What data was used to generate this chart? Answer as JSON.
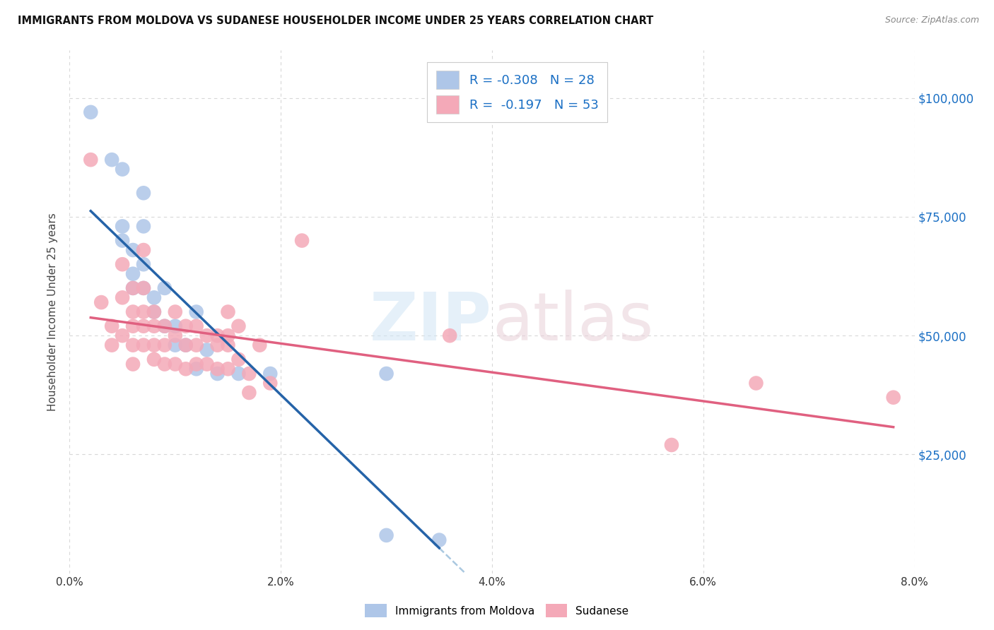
{
  "title": "IMMIGRANTS FROM MOLDOVA VS SUDANESE HOUSEHOLDER INCOME UNDER 25 YEARS CORRELATION CHART",
  "source": "Source: ZipAtlas.com",
  "ylabel": "Householder Income Under 25 years",
  "xlim": [
    0.0,
    0.08
  ],
  "ylim": [
    0,
    110000
  ],
  "xtick_labels": [
    "0.0%",
    "2.0%",
    "4.0%",
    "6.0%",
    "8.0%"
  ],
  "xtick_vals": [
    0.0,
    0.02,
    0.04,
    0.06,
    0.08
  ],
  "ytick_labels": [
    "$25,000",
    "$50,000",
    "$75,000",
    "$100,000"
  ],
  "ytick_vals": [
    25000,
    50000,
    75000,
    100000
  ],
  "moldova_R": -0.308,
  "moldova_N": 28,
  "sudanese_R": -0.197,
  "sudanese_N": 53,
  "moldova_color": "#aec6e8",
  "sudanese_color": "#f4a9b8",
  "moldova_line_color": "#2563a8",
  "sudanese_line_color": "#e06080",
  "dashed_line_color": "#aac8e0",
  "moldova_points_x": [
    0.002,
    0.004,
    0.005,
    0.007,
    0.005,
    0.005,
    0.006,
    0.006,
    0.006,
    0.007,
    0.007,
    0.007,
    0.008,
    0.008,
    0.009,
    0.009,
    0.01,
    0.01,
    0.011,
    0.012,
    0.012,
    0.013,
    0.014,
    0.016,
    0.019,
    0.03,
    0.03,
    0.035
  ],
  "moldova_points_y": [
    97000,
    87000,
    85000,
    80000,
    73000,
    70000,
    68000,
    63000,
    60000,
    73000,
    65000,
    60000,
    58000,
    55000,
    60000,
    52000,
    52000,
    48000,
    48000,
    55000,
    43000,
    47000,
    42000,
    42000,
    42000,
    8000,
    42000,
    7000
  ],
  "sudanese_points_x": [
    0.002,
    0.003,
    0.004,
    0.004,
    0.005,
    0.005,
    0.005,
    0.006,
    0.006,
    0.006,
    0.006,
    0.006,
    0.007,
    0.007,
    0.007,
    0.007,
    0.007,
    0.008,
    0.008,
    0.008,
    0.008,
    0.009,
    0.009,
    0.009,
    0.01,
    0.01,
    0.01,
    0.011,
    0.011,
    0.011,
    0.012,
    0.012,
    0.012,
    0.013,
    0.013,
    0.014,
    0.014,
    0.014,
    0.015,
    0.015,
    0.015,
    0.015,
    0.016,
    0.016,
    0.017,
    0.017,
    0.018,
    0.019,
    0.022,
    0.036,
    0.057,
    0.065,
    0.078
  ],
  "sudanese_points_y": [
    87000,
    57000,
    52000,
    48000,
    65000,
    58000,
    50000,
    60000,
    55000,
    52000,
    48000,
    44000,
    68000,
    60000,
    55000,
    52000,
    48000,
    55000,
    52000,
    48000,
    45000,
    52000,
    48000,
    44000,
    55000,
    50000,
    44000,
    52000,
    48000,
    43000,
    52000,
    48000,
    44000,
    50000,
    44000,
    50000,
    48000,
    43000,
    55000,
    50000,
    48000,
    43000,
    52000,
    45000,
    42000,
    38000,
    48000,
    40000,
    70000,
    50000,
    27000,
    40000,
    37000
  ],
  "watermark_zip": "ZIP",
  "watermark_atlas": "atlas",
  "background_color": "#ffffff",
  "grid_color": "#d8d8d8"
}
